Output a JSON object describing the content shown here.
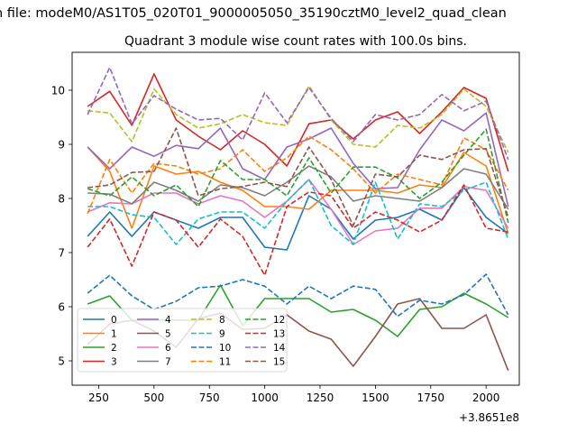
{
  "suptitle": "n file: modeM0/AS1T05_020T01_9000005050_35190cztM0_level2_quad_clean",
  "chart_data": {
    "type": "line",
    "title": "Quadrant 3 module wise count rates with 100.0s bins.",
    "xlabel": "",
    "ylabel": "",
    "x_offset_label": "+3.8651e8",
    "xlim": [
      130,
      2150
    ],
    "ylim": [
      4.55,
      10.7
    ],
    "xticks": [
      250,
      500,
      750,
      1000,
      1250,
      1500,
      1750,
      2000
    ],
    "yticks": [
      5,
      6,
      7,
      8,
      9,
      10
    ],
    "x": [
      200,
      300,
      400,
      500,
      600,
      700,
      800,
      900,
      1000,
      1100,
      1200,
      1300,
      1400,
      1500,
      1600,
      1700,
      1800,
      1900,
      2000,
      2100
    ],
    "legend_position": "lower-left",
    "series": [
      {
        "name": "0",
        "color": "#1f77b4",
        "dash": "solid",
        "values": [
          7.3,
          7.75,
          7.3,
          7.75,
          7.6,
          7.45,
          7.65,
          7.65,
          7.1,
          7.05,
          8.05,
          7.8,
          7.25,
          7.6,
          7.65,
          7.8,
          7.6,
          8.2,
          7.65,
          7.35
        ]
      },
      {
        "name": "1",
        "color": "#ff7f0e",
        "dash": "solid",
        "values": [
          8.95,
          8.5,
          7.45,
          8.6,
          8.45,
          8.5,
          8.3,
          8.15,
          7.85,
          7.85,
          7.8,
          8.15,
          8.15,
          8.15,
          8.1,
          8.25,
          8.2,
          8.85,
          8.6,
          7.35
        ]
      },
      {
        "name": "2",
        "color": "#2ca02c",
        "dash": "solid",
        "values": [
          6.05,
          6.2,
          5.75,
          5.75,
          5.75,
          5.75,
          6.4,
          5.65,
          6.15,
          6.15,
          6.15,
          5.9,
          5.95,
          5.75,
          5.45,
          5.95,
          6.0,
          6.25,
          6.05,
          5.8
        ]
      },
      {
        "name": "3",
        "color": "#d62728",
        "dash": "solid",
        "values": [
          9.7,
          9.98,
          9.35,
          10.3,
          9.45,
          9.15,
          8.9,
          9.25,
          9.0,
          8.6,
          9.38,
          9.45,
          9.1,
          9.45,
          9.6,
          9.2,
          9.6,
          10.05,
          9.85,
          8.5
        ]
      },
      {
        "name": "4",
        "color": "#9467bd",
        "dash": "solid",
        "values": [
          8.95,
          8.55,
          8.95,
          8.78,
          8.98,
          8.92,
          9.3,
          8.55,
          8.35,
          8.95,
          9.1,
          9.3,
          8.65,
          8.18,
          8.2,
          8.9,
          9.45,
          9.25,
          9.58,
          7.85
        ]
      },
      {
        "name": "5",
        "color": "#8c564b",
        "dash": "solid",
        "values": [
          5.3,
          5.68,
          5.75,
          5.55,
          5.25,
          5.78,
          5.88,
          5.58,
          5.6,
          5.85,
          5.55,
          5.4,
          4.9,
          5.45,
          6.05,
          6.15,
          5.6,
          5.6,
          5.85,
          4.82
        ]
      },
      {
        "name": "6",
        "color": "#e377c2",
        "dash": "solid",
        "values": [
          7.75,
          7.92,
          7.9,
          8.1,
          8.1,
          7.9,
          8.05,
          7.95,
          7.65,
          7.95,
          8.35,
          7.8,
          7.15,
          7.4,
          7.45,
          7.82,
          7.82,
          8.22,
          8.15,
          7.45
        ]
      },
      {
        "name": "7",
        "color": "#7f7f7f",
        "dash": "solid",
        "values": [
          8.1,
          8.08,
          7.9,
          8.3,
          8.15,
          7.95,
          8.25,
          8.2,
          8.05,
          8.3,
          8.6,
          8.4,
          7.95,
          8.05,
          8.0,
          7.95,
          8.2,
          8.55,
          8.45,
          7.8
        ]
      },
      {
        "name": "8",
        "color": "#bcbd22",
        "dash": "dashed",
        "values": [
          9.62,
          9.58,
          9.05,
          10.02,
          9.55,
          9.3,
          9.38,
          9.55,
          9.4,
          9.35,
          10.08,
          9.45,
          9.0,
          8.95,
          9.35,
          9.3,
          9.55,
          10.02,
          9.7,
          8.85
        ]
      },
      {
        "name": "9",
        "color": "#17becf",
        "dash": "dashed",
        "values": [
          7.85,
          7.85,
          7.7,
          7.65,
          7.15,
          7.62,
          7.75,
          7.75,
          7.45,
          7.95,
          8.35,
          7.5,
          7.15,
          8.3,
          7.25,
          7.9,
          7.85,
          8.15,
          8.3,
          7.25
        ]
      },
      {
        "name": "10",
        "color": "#1f77b4",
        "dash": "dashed",
        "values": [
          6.25,
          6.58,
          6.2,
          5.95,
          6.1,
          6.35,
          6.38,
          6.5,
          6.38,
          6.05,
          6.38,
          6.15,
          6.38,
          6.32,
          5.82,
          6.12,
          6.05,
          6.22,
          6.6,
          5.85
        ]
      },
      {
        "name": "11",
        "color": "#ff7f0e",
        "dash": "dashed",
        "values": [
          7.72,
          8.72,
          8.1,
          8.65,
          8.6,
          8.45,
          8.55,
          8.9,
          8.5,
          8.75,
          9.15,
          8.9,
          8.55,
          8.1,
          8.45,
          8.35,
          8.25,
          9.12,
          8.9,
          8.15
        ]
      },
      {
        "name": "12",
        "color": "#2ca02c",
        "dash": "dashed",
        "values": [
          8.18,
          8.05,
          8.4,
          8.05,
          8.25,
          7.85,
          8.7,
          8.35,
          8.35,
          8.05,
          8.75,
          8.1,
          8.58,
          8.58,
          8.38,
          8.0,
          8.3,
          8.8,
          9.28,
          7.55
        ]
      },
      {
        "name": "13",
        "color": "#d62728",
        "dash": "dashed",
        "values": [
          7.1,
          7.62,
          6.75,
          7.75,
          7.6,
          7.1,
          7.62,
          7.3,
          6.58,
          7.85,
          8.12,
          8.05,
          7.45,
          7.75,
          7.6,
          7.38,
          7.6,
          8.25,
          7.45,
          7.38
        ]
      },
      {
        "name": "14",
        "color": "#9467bd",
        "dash": "dashed",
        "values": [
          9.55,
          10.42,
          9.38,
          9.9,
          9.65,
          9.45,
          9.48,
          9.08,
          9.95,
          9.4,
          10.05,
          9.48,
          9.05,
          9.55,
          9.45,
          9.55,
          9.92,
          9.62,
          9.8,
          8.72
        ]
      },
      {
        "name": "15",
        "color": "#8c564b",
        "dash": "dashed",
        "values": [
          8.2,
          8.25,
          8.48,
          8.5,
          9.3,
          8.05,
          8.18,
          8.22,
          8.3,
          8.22,
          8.95,
          8.35,
          7.5,
          8.45,
          8.4,
          8.8,
          8.72,
          8.9,
          8.92,
          7.65
        ]
      }
    ]
  }
}
